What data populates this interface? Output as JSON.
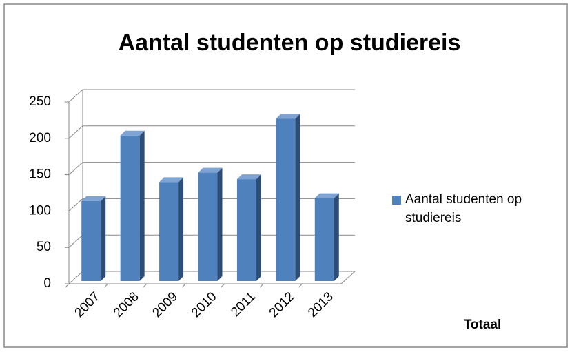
{
  "chart_data": {
    "type": "bar3d",
    "title": "Aantal studenten op studiereis",
    "categories": [
      "2007",
      "2008",
      "2009",
      "2010",
      "2011",
      "2012",
      "2013"
    ],
    "series": [
      {
        "name": "Aantal studenten op studiereis",
        "color": "#4f81bd",
        "values": [
          110,
          200,
          136,
          149,
          140,
          223,
          114
        ]
      }
    ],
    "x_label": "Totaal",
    "ylim": [
      0,
      250
    ],
    "yticks": [
      0,
      50,
      100,
      150,
      200,
      250
    ],
    "grid": true,
    "legend": "right"
  }
}
